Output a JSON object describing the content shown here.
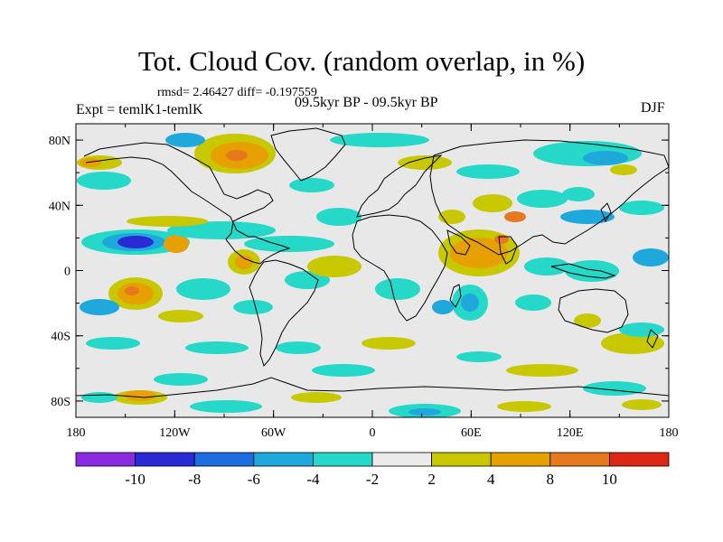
{
  "title": "Tot. Cloud Cov. (random overlap, in %)",
  "stats": "rmsd= 2.46427 diff= -0.197559",
  "experiment": "Expt = temlK1-temlK",
  "period": "09.5kyr BP - 09.5kyr BP",
  "season": "DJF",
  "map": {
    "lat_ticks": [
      "80N",
      "40N",
      "0",
      "40S",
      "80S"
    ],
    "lat_values": [
      80,
      40,
      0,
      -40,
      -80
    ],
    "lon_ticks": [
      "180",
      "120W",
      "60W",
      "0",
      "60E",
      "120E",
      "180"
    ],
    "lon_values": [
      -180,
      -120,
      -60,
      0,
      60,
      120,
      180
    ],
    "lat_range": [
      -90,
      90
    ],
    "lon_range": [
      -180,
      180
    ],
    "colors": {
      "background": "#e8e8e8",
      "coast": "#000000"
    }
  },
  "colorbar": {
    "labels": [
      "-10",
      "-8",
      "-6",
      "-4",
      "-2",
      "2",
      "4",
      "8",
      "10"
    ],
    "colors": [
      "#8a2be2",
      "#2a2ad4",
      "#1c6ee0",
      "#1fa8dc",
      "#26d8c8",
      "#ebebeb",
      "#c8c800",
      "#e6a000",
      "#e6781e",
      "#dc2814"
    ]
  },
  "chart_data": {
    "type": "heatmap",
    "title": "Tot. Cloud Cov. (random overlap, in %)",
    "subtitle": "09.5kyr BP - 09.5kyr BP",
    "xlabel": "",
    "ylabel": "",
    "xlim": [
      -180,
      180
    ],
    "ylim": [
      -90,
      90
    ],
    "x_ticks": [
      "180",
      "120W",
      "60W",
      "0",
      "60E",
      "120E",
      "180"
    ],
    "y_ticks": [
      "80N",
      "40N",
      "0",
      "40S",
      "80S"
    ],
    "levels": [
      -10,
      -8,
      -6,
      -4,
      -2,
      2,
      4,
      8,
      10
    ],
    "features": [
      {
        "lon": -148,
        "lat": 15,
        "value": -9
      },
      {
        "lon": -160,
        "lat": 17,
        "value": -5
      },
      {
        "lon": -130,
        "lat": 13,
        "value": 3
      },
      {
        "lon": -142,
        "lat": -15,
        "value": 8
      },
      {
        "lon": -115,
        "lat": -20,
        "value": 3
      },
      {
        "lon": -155,
        "lat": -30,
        "value": -4
      },
      {
        "lon": -100,
        "lat": 20,
        "value": 3
      },
      {
        "lon": -80,
        "lat": -20,
        "value": -5
      },
      {
        "lon": -35,
        "lat": 20,
        "value": -3
      },
      {
        "lon": -20,
        "lat": 5,
        "value": 4
      },
      {
        "lon": 10,
        "lat": 40,
        "value": 3
      },
      {
        "lon": 45,
        "lat": 50,
        "value": -3
      },
      {
        "lon": 60,
        "lat": 5,
        "value": 6
      },
      {
        "lon": 80,
        "lat": 35,
        "value": 5
      },
      {
        "lon": 100,
        "lat": -5,
        "value": -4
      },
      {
        "lon": 140,
        "lat": 70,
        "value": -6
      },
      {
        "lon": 130,
        "lat": 40,
        "value": -4
      },
      {
        "lon": 160,
        "lat": 20,
        "value": -3
      },
      {
        "lon": 150,
        "lat": -45,
        "value": 3
      },
      {
        "lon": -60,
        "lat": 72,
        "value": 6
      },
      {
        "lon": -130,
        "lat": 75,
        "value": -4
      },
      {
        "lon": -150,
        "lat": -80,
        "value": 5
      },
      {
        "lon": 20,
        "lat": -40,
        "value": -3
      },
      {
        "lon": 60,
        "lat": -30,
        "value": -4
      }
    ]
  }
}
